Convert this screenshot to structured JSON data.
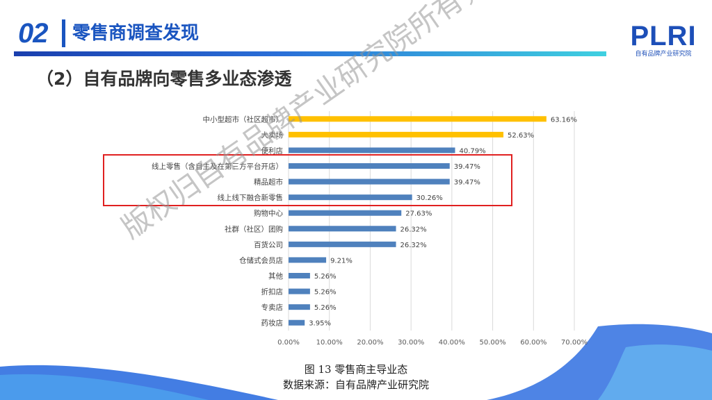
{
  "header": {
    "number": "02",
    "title": "零售商调查发现"
  },
  "logo": {
    "name": "PLRI",
    "subtitle": "自有品牌产业研究院"
  },
  "subtitle": "（2）自有品牌向零售多业态渗透",
  "watermark": "版权归自有品牌产业研究院所有，翻版必究",
  "caption": {
    "line1": "图 13 零售商主导业态",
    "line2": "数据来源：自有品牌产业研究院"
  },
  "colors": {
    "gold": "#FFC000",
    "blue": "#4F81BD",
    "highlight": "#E02020",
    "brand": "#1A55C0"
  },
  "chart_data": {
    "type": "bar",
    "orientation": "horizontal",
    "categories": [
      "中小型超市（社区超市）",
      "大卖场",
      "便利店",
      "线上零售（含自主及在第三方平台开店）",
      "精品超市",
      "线上线下融合新零售",
      "购物中心",
      "社群（社区）团购",
      "百货公司",
      "仓储式会员店",
      "其他",
      "折扣店",
      "专卖店",
      "药妆店"
    ],
    "values": [
      63.16,
      52.63,
      40.79,
      39.47,
      39.47,
      30.26,
      27.63,
      26.32,
      26.32,
      9.21,
      5.26,
      5.26,
      5.26,
      3.95
    ],
    "labels": [
      "63.16%",
      "52.63%",
      "40.79%",
      "39.47%",
      "39.47%",
      "30.26%",
      "27.63%",
      "26.32%",
      "26.32%",
      "9.21%",
      "5.26%",
      "5.26%",
      "5.26%",
      "3.95%"
    ],
    "highlighted": [
      false,
      true,
      false,
      false,
      false,
      false,
      false,
      false,
      false,
      false,
      false,
      false,
      false,
      false
    ],
    "xlim": [
      0,
      70
    ],
    "xticks": [
      "0.00%",
      "10.00%",
      "20.00%",
      "30.00%",
      "40.00%",
      "50.00%",
      "60.00%",
      "70.00%"
    ],
    "grid": true,
    "title": "图 13 零售商主导业态",
    "xlabel": "",
    "ylabel": ""
  }
}
